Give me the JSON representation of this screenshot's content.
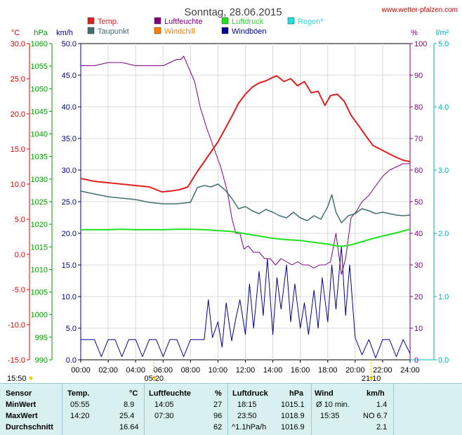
{
  "title": "Sonntag, 28.06.2015",
  "source": "www.wetter-pfalzen.com",
  "legend": [
    {
      "label": "Temp.",
      "color": "#e02020"
    },
    {
      "label": "Luftfeuchte",
      "color": "#800080"
    },
    {
      "label": "Luftdruck",
      "color": "#20e020"
    },
    {
      "label": "Regen*",
      "color": "#20e0e0"
    },
    {
      "label": "Taupunkt",
      "color": "#407070"
    },
    {
      "label": "Windchill",
      "color": "#ff8000"
    },
    {
      "label": "Windböen",
      "color": "#000090"
    }
  ],
  "axis_units": {
    "temp": "°C",
    "pressure": "hPa",
    "wind": "km/h",
    "humidity": "%",
    "rain": "l/m²"
  },
  "sun": {
    "sunrise": "05:20",
    "sunset": "21:10",
    "left_time": "15:50"
  },
  "chart_data": {
    "type": "line",
    "x_range": [
      "00:00",
      "24:00"
    ],
    "x_ticks": [
      "00:00",
      "02:00",
      "04:00",
      "06:00",
      "08:00",
      "10:00",
      "12:00",
      "14:00",
      "16:00",
      "18:00",
      "20:00",
      "22:00",
      "24:00"
    ],
    "axes": {
      "temp": {
        "range": [
          -15,
          30
        ],
        "ticks": [
          "30.0",
          "25.0",
          "20.0",
          "15.0",
          "10.0",
          "5.0",
          "0.0",
          "-5.0",
          "-10.0",
          "-15.0"
        ]
      },
      "pressure": {
        "range": [
          990,
          1060
        ],
        "ticks": [
          "1060",
          "1055",
          "1050",
          "1045",
          "1040",
          "1035",
          "1030",
          "1025",
          "1020",
          "1015",
          "1010",
          "1005",
          "1000",
          "995",
          "990"
        ]
      },
      "wind": {
        "range": [
          0,
          50
        ],
        "ticks": [
          "50.0",
          "45.0",
          "40.0",
          "35.0",
          "30.0",
          "25.0",
          "20.0",
          "15.0",
          "10.0",
          "5.0",
          "0.0"
        ]
      },
      "humidity": {
        "range": [
          0,
          100
        ],
        "ticks": [
          "100",
          "90",
          "80",
          "70",
          "60",
          "50",
          "40",
          "30",
          "20",
          "10",
          "0"
        ]
      },
      "rain": {
        "range": [
          0,
          5
        ],
        "ticks": [
          "5.0",
          "4.0",
          "3.0",
          "2.0",
          "1.0",
          "0.0"
        ]
      }
    },
    "series": [
      {
        "name": "Temp.",
        "axis": "temp",
        "color": "#e02020",
        "x": [
          0,
          1,
          2,
          3,
          4,
          5,
          5.9,
          6.5,
          7.2,
          7.8,
          8.5,
          9,
          9.5,
          10,
          10.5,
          11,
          11.5,
          12,
          12.5,
          13,
          13.5,
          14,
          14.3,
          14.8,
          15.3,
          15.8,
          16.3,
          16.8,
          17.3,
          17.8,
          18.2,
          18.7,
          19.2,
          19.7,
          20.3,
          20.8,
          21.3,
          22,
          22.5,
          23,
          23.5,
          24
        ],
        "y": [
          10.8,
          10.4,
          10.2,
          10.0,
          9.8,
          9.6,
          8.9,
          9.0,
          9.2,
          9.6,
          11.8,
          13.2,
          14.6,
          16.0,
          17.8,
          19.6,
          21.5,
          22.8,
          23.8,
          24.4,
          24.7,
          25.2,
          25.4,
          24.6,
          25.0,
          24.0,
          24.6,
          23.0,
          23.2,
          21.2,
          22.6,
          22.8,
          21.8,
          19.8,
          18.2,
          16.8,
          15.5,
          14.8,
          14.3,
          13.8,
          13.4,
          13.2
        ]
      },
      {
        "name": "Taupunkt",
        "axis": "temp",
        "color": "#407070",
        "x": [
          0,
          1,
          2,
          3,
          4,
          5,
          6,
          7,
          8,
          8.5,
          9,
          9.5,
          10,
          10.5,
          11,
          11.5,
          12,
          12.5,
          13,
          13.5,
          14,
          14.5,
          15,
          15.5,
          16,
          16.5,
          17,
          17.5,
          18,
          18.3,
          18.6,
          19,
          19.5,
          20,
          20.5,
          21,
          21.5,
          22,
          22.5,
          23,
          23.5,
          24
        ],
        "y": [
          9.0,
          8.6,
          8.2,
          8.0,
          7.8,
          7.4,
          7.2,
          7.2,
          7.4,
          9.5,
          9.8,
          9.6,
          10.0,
          9.2,
          8.0,
          6.5,
          6.8,
          6.2,
          5.8,
          6.4,
          6.0,
          5.5,
          5.2,
          6.0,
          5.2,
          4.8,
          5.5,
          5.0,
          6.8,
          8.5,
          6.0,
          4.5,
          5.5,
          5.8,
          6.5,
          6.2,
          5.8,
          6.0,
          5.8,
          5.6,
          5.5,
          5.6
        ]
      },
      {
        "name": "Luftfeuchte",
        "axis": "humidity",
        "color": "#800080",
        "x": [
          0,
          1,
          2,
          3,
          4,
          5,
          6,
          7,
          7.3,
          7.5,
          7.9,
          8.3,
          8.7,
          9.2,
          9.7,
          10.2,
          10.7,
          11,
          11.3,
          11.6,
          11.9,
          12.2,
          12.6,
          13,
          13.4,
          13.8,
          14.2,
          14.6,
          15,
          15.4,
          15.8,
          16.2,
          16.6,
          17,
          17.4,
          17.8,
          18.2,
          18.6,
          19,
          19.3,
          19.7,
          20.1,
          20.5,
          21,
          21.5,
          22,
          22.5,
          23,
          23.5,
          24
        ],
        "y": [
          93,
          93,
          94,
          94,
          93,
          93,
          93,
          95,
          95,
          96,
          92,
          88,
          80,
          73,
          67,
          61,
          53,
          45,
          40,
          40,
          35,
          36,
          34,
          34,
          32,
          32,
          30,
          32,
          31,
          30,
          31,
          30,
          30,
          29,
          30,
          30,
          31,
          40,
          27,
          32,
          45,
          47,
          50,
          52,
          55,
          58,
          60,
          61,
          62,
          62
        ]
      },
      {
        "name": "Luftdruck",
        "axis": "pressure",
        "color": "#20e020",
        "x": [
          0,
          1,
          2,
          3,
          4,
          5,
          6,
          7,
          8,
          9,
          10,
          11,
          12,
          13,
          14,
          15,
          16,
          17,
          18,
          18.5,
          19,
          19.5,
          20,
          21,
          22,
          23,
          24
        ],
        "y": [
          1018.8,
          1018.8,
          1018.8,
          1018.9,
          1018.8,
          1018.8,
          1018.8,
          1018.9,
          1018.9,
          1018.8,
          1018.6,
          1018.4,
          1017.9,
          1017.4,
          1016.9,
          1016.6,
          1016.4,
          1016.0,
          1015.6,
          1015.3,
          1015.1,
          1015.3,
          1015.7,
          1016.6,
          1017.4,
          1018.1,
          1018.9
        ]
      },
      {
        "name": "Windböen",
        "axis": "wind",
        "color": "#000090",
        "x": [
          0,
          0.5,
          1,
          1.5,
          2,
          2.5,
          3,
          3.5,
          4,
          4.5,
          5,
          5.5,
          6,
          6.5,
          7,
          7.5,
          8,
          8.5,
          9,
          9.3,
          9.6,
          10,
          10.3,
          10.6,
          11,
          11.3,
          11.6,
          12,
          12.3,
          12.6,
          13,
          13.3,
          13.6,
          14,
          14.3,
          14.6,
          15,
          15.3,
          15.6,
          16,
          16.3,
          16.6,
          17,
          17.3,
          17.6,
          18,
          18.3,
          18.6,
          19,
          19.3,
          19.6,
          20,
          20.5,
          21,
          21.5,
          22,
          22.5,
          23,
          23.5,
          24
        ],
        "y": [
          3.2,
          3.2,
          3.2,
          0.5,
          3.2,
          3.2,
          0.5,
          3.2,
          3.2,
          0.5,
          3.2,
          3.2,
          0.5,
          3.2,
          3.2,
          0.5,
          3.2,
          3.2,
          3.2,
          9.5,
          3.5,
          6.0,
          2.0,
          9.0,
          3.0,
          6.5,
          9.5,
          4.0,
          12.0,
          5.0,
          14.0,
          7.0,
          16.0,
          4.0,
          13.0,
          8.0,
          15.0,
          6.0,
          12.0,
          5.0,
          9.0,
          4.0,
          11.0,
          5.0,
          13.0,
          6.0,
          15.0,
          8.0,
          18.0,
          7.0,
          15.0,
          3.5,
          0.8,
          3.2,
          0.3,
          3.2,
          3.2,
          0.5,
          3.2,
          1.0
        ]
      }
    ]
  },
  "stats": {
    "headers": {
      "sensor": "Sensor",
      "temp": "Temp.",
      "temp_unit": "°C",
      "hum": "Luftfeuchte",
      "hum_unit": "%",
      "pres": "Luftdruck",
      "pres_unit": "hPa",
      "wind": "Wind",
      "wind_unit": "km/h"
    },
    "rows": [
      {
        "label": "MinWert",
        "temp_time": "05:55",
        "temp_val": "8.9",
        "hum_time": "14:05",
        "hum_val": "27",
        "pres_time": "18:15",
        "pres_val": "1015.1",
        "wind_time": "Ø 10 min.",
        "wind_val": "1.4"
      },
      {
        "label": "MaxWert",
        "temp_time": "14:20",
        "temp_val": "25.4",
        "hum_time": "07:30",
        "hum_val": "96",
        "pres_time": "23:50",
        "pres_val": "1018.9",
        "wind_time": "15:35",
        "wind_val": "NO 6.7"
      },
      {
        "label": "Durchschnitt",
        "temp_time": "",
        "temp_val": "16.64",
        "hum_time": "",
        "hum_val": "62",
        "pres_time": "^1.1hPa/h",
        "pres_val": "1016.9",
        "wind_time": "",
        "wind_val": "2.1"
      }
    ]
  }
}
